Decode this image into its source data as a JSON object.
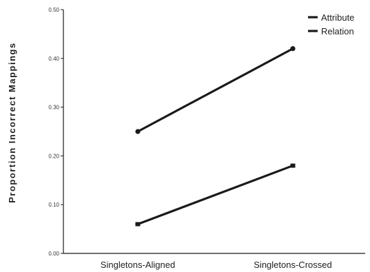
{
  "chart_data": {
    "type": "line",
    "categories": [
      "Singletons-Aligned",
      "Singletons-Crossed"
    ],
    "series": [
      {
        "name": "Attribute",
        "values": [
          0.06,
          0.18
        ],
        "marker": "square"
      },
      {
        "name": "Relation",
        "values": [
          0.25,
          0.42
        ],
        "marker": "circle"
      }
    ],
    "ylabel": "Proportion Incorrect Mappings",
    "xlabel": "",
    "ylim": [
      0,
      0.5
    ],
    "yticks": [
      "0.00",
      "0.10",
      "0.20",
      "0.30",
      "0.40",
      "0.50"
    ],
    "legend_position": "top-right",
    "grid": false,
    "line_color": "#1a1a1a"
  }
}
